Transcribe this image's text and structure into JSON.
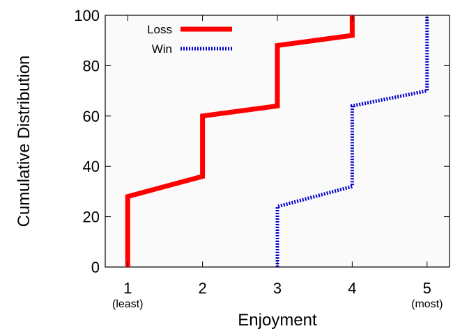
{
  "chart_data": {
    "type": "line",
    "title": "",
    "xlabel": "Enjoyment",
    "ylabel": "Cumulative Distribution",
    "xlim": [
      0.7,
      5.3
    ],
    "ylim": [
      0,
      100
    ],
    "x_ticks": [
      {
        "value": 1,
        "label": "1",
        "sublabel": "(least)"
      },
      {
        "value": 2,
        "label": "2",
        "sublabel": ""
      },
      {
        "value": 3,
        "label": "3",
        "sublabel": ""
      },
      {
        "value": 4,
        "label": "4",
        "sublabel": ""
      },
      {
        "value": 5,
        "label": "5",
        "sublabel": "(most)"
      }
    ],
    "y_ticks": [
      0,
      20,
      40,
      60,
      80,
      100
    ],
    "grid": false,
    "legend_position": "top-left",
    "series": [
      {
        "name": "Loss",
        "color": "#ff0000",
        "style": "solid",
        "points": [
          [
            1,
            0
          ],
          [
            1,
            28
          ],
          [
            2,
            36
          ],
          [
            2,
            60
          ],
          [
            3,
            64
          ],
          [
            3,
            88
          ],
          [
            4,
            92
          ],
          [
            4,
            100
          ]
        ]
      },
      {
        "name": "Win",
        "color": "#0000cc",
        "style": "dotted",
        "points": [
          [
            3,
            0
          ],
          [
            3,
            24
          ],
          [
            4,
            32
          ],
          [
            4,
            64
          ],
          [
            5,
            70
          ],
          [
            5,
            100
          ]
        ]
      }
    ]
  }
}
